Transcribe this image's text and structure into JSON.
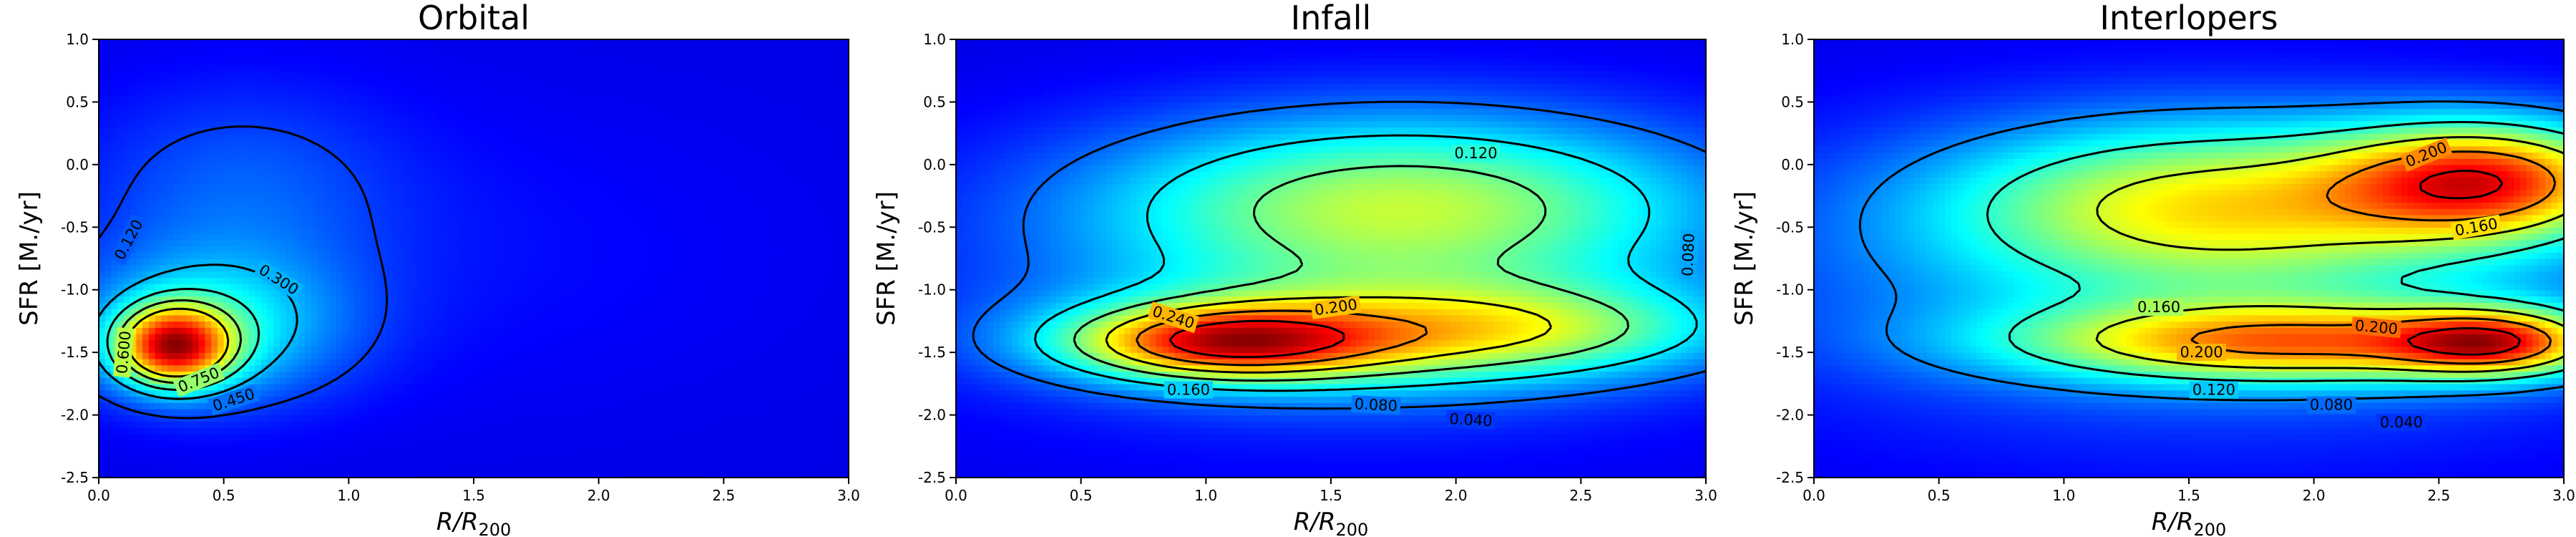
{
  "figure": {
    "colormap": "jet",
    "colors": {
      "contour_line": "#000000",
      "frame": "#000000"
    }
  },
  "chart_data": [
    {
      "type": "heatmap",
      "title": "Orbital",
      "xlabel_base": "R/R",
      "xlabel_sub": "200",
      "ylabel": "SFR [M./yr]",
      "xlim": [
        0,
        3.0
      ],
      "ylim": [
        -2.5,
        1.0
      ],
      "xticks": [
        "0.0",
        "0.5",
        "1.0",
        "1.5",
        "2.0",
        "2.5",
        "3.0"
      ],
      "yticks": [
        "-2.5",
        "-2.0",
        "-1.5",
        "-1.0",
        "-0.5",
        "0.0",
        "0.5",
        "1.0"
      ],
      "density_components": [
        {
          "x": 0.3,
          "y": -1.45,
          "sx": 0.16,
          "sy": 0.22,
          "amp": 0.95
        },
        {
          "x": 0.45,
          "y": -1.3,
          "sx": 0.38,
          "sy": 0.42,
          "amp": 0.35
        },
        {
          "x": 0.55,
          "y": -0.2,
          "sx": 0.45,
          "sy": 0.6,
          "amp": 0.14
        },
        {
          "x": 1.3,
          "y": -0.7,
          "sx": 1.1,
          "sy": 0.9,
          "amp": 0.05
        }
      ],
      "contour_levels": [
        0.12,
        0.3,
        0.45,
        0.6,
        0.75
      ],
      "contour_labels": [
        {
          "text": "0.120",
          "x": 0.12,
          "y": -0.6,
          "rot": -62
        },
        {
          "text": "0.300",
          "x": 0.72,
          "y": -0.92,
          "rot": 32
        },
        {
          "text": "0.600",
          "x": 0.1,
          "y": -1.5,
          "rot": -85
        },
        {
          "text": "0.750",
          "x": 0.4,
          "y": -1.72,
          "rot": -22
        },
        {
          "text": "0.450",
          "x": 0.54,
          "y": -1.88,
          "rot": -18
        }
      ]
    },
    {
      "type": "heatmap",
      "title": "Infall",
      "xlabel_base": "R/R",
      "xlabel_sub": "200",
      "ylabel": "SFR [M./yr]",
      "xlim": [
        0,
        3.0
      ],
      "ylim": [
        -2.5,
        1.0
      ],
      "xticks": [
        "0.0",
        "0.5",
        "1.0",
        "1.5",
        "2.0",
        "2.5",
        "3.0"
      ],
      "yticks": [
        "-2.5",
        "-2.0",
        "-1.5",
        "-1.0",
        "-0.5",
        "0.0",
        "0.5",
        "1.0"
      ],
      "density_components": [
        {
          "x": 1.05,
          "y": -1.42,
          "sx": 0.42,
          "sy": 0.2,
          "amp": 0.16
        },
        {
          "x": 1.6,
          "y": -1.38,
          "sx": 0.75,
          "sy": 0.3,
          "amp": 0.1
        },
        {
          "x": 1.8,
          "y": -0.3,
          "sx": 0.85,
          "sy": 0.5,
          "amp": 0.12
        },
        {
          "x": 2.4,
          "y": -1.3,
          "sx": 0.55,
          "sy": 0.25,
          "amp": 0.06
        },
        {
          "x": 1.6,
          "y": -1.0,
          "sx": 1.2,
          "sy": 0.8,
          "amp": 0.04
        }
      ],
      "contour_levels": [
        0.04,
        0.08,
        0.12,
        0.16,
        0.2,
        0.24
      ],
      "contour_labels": [
        {
          "text": "0.120",
          "x": 2.08,
          "y": 0.09,
          "rot": 0
        },
        {
          "text": "0.240",
          "x": 0.87,
          "y": -1.22,
          "rot": 18
        },
        {
          "text": "0.200",
          "x": 1.52,
          "y": -1.14,
          "rot": -8
        },
        {
          "text": "0.160",
          "x": 0.93,
          "y": -1.8,
          "rot": 0
        },
        {
          "text": "0.080",
          "x": 1.68,
          "y": -1.92,
          "rot": 3
        },
        {
          "text": "0.040",
          "x": 2.06,
          "y": -2.04,
          "rot": 3
        },
        {
          "text": "0.080",
          "x": 2.93,
          "y": -0.72,
          "rot": -88
        }
      ]
    },
    {
      "type": "heatmap",
      "title": "Interlopers",
      "xlabel_base": "R/R",
      "xlabel_sub": "200",
      "ylabel": "SFR [M./yr]",
      "xlim": [
        0,
        3.0
      ],
      "ylim": [
        -2.5,
        1.0
      ],
      "xticks": [
        "0.0",
        "0.5",
        "1.0",
        "1.5",
        "2.0",
        "2.5",
        "3.0"
      ],
      "yticks": [
        "-2.5",
        "-2.0",
        "-1.5",
        "-1.0",
        "-0.5",
        "0.0",
        "0.5",
        "1.0"
      ],
      "density_components": [
        {
          "x": 2.72,
          "y": -1.42,
          "sx": 0.28,
          "sy": 0.18,
          "amp": 0.12
        },
        {
          "x": 1.9,
          "y": -1.42,
          "sx": 0.75,
          "sy": 0.22,
          "amp": 0.13
        },
        {
          "x": 2.7,
          "y": -0.12,
          "sx": 0.42,
          "sy": 0.32,
          "amp": 0.15
        },
        {
          "x": 1.6,
          "y": -0.3,
          "sx": 0.75,
          "sy": 0.45,
          "amp": 0.1
        },
        {
          "x": 1.6,
          "y": -0.9,
          "sx": 1.3,
          "sy": 0.85,
          "amp": 0.05
        }
      ],
      "contour_levels": [
        0.04,
        0.08,
        0.12,
        0.16,
        0.2,
        0.24
      ],
      "contour_labels": [
        {
          "text": "0.200",
          "x": 2.45,
          "y": 0.08,
          "rot": -22
        },
        {
          "text": "0.160",
          "x": 2.65,
          "y": -0.5,
          "rot": -10
        },
        {
          "text": "0.160",
          "x": 1.38,
          "y": -1.14,
          "rot": 0
        },
        {
          "text": "0.200",
          "x": 2.25,
          "y": -1.3,
          "rot": 5
        },
        {
          "text": "0.200",
          "x": 1.55,
          "y": -1.5,
          "rot": 0
        },
        {
          "text": "0.120",
          "x": 1.6,
          "y": -1.8,
          "rot": 0
        },
        {
          "text": "0.080",
          "x": 2.07,
          "y": -1.92,
          "rot": 0
        },
        {
          "text": "0.040",
          "x": 2.35,
          "y": -2.06,
          "rot": 0
        }
      ]
    }
  ]
}
